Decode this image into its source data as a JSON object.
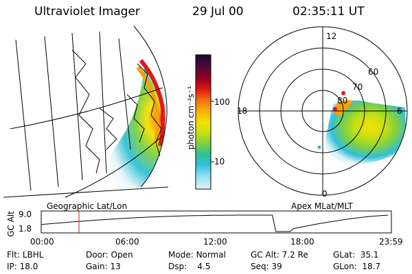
{
  "header": {
    "title": "Ultraviolet Imager",
    "date": "29 Jul 00",
    "time": "02:35:11 UT"
  },
  "colorbar": {
    "label": "photon cm⁻²s⁻¹",
    "ticks": [
      "100",
      "10"
    ],
    "colors": [
      "#1a0a2a",
      "#4a0a3a",
      "#9a0020",
      "#e01818",
      "#f06a10",
      "#f5a20a",
      "#f6e000",
      "#c8e010",
      "#80d040",
      "#30c090",
      "#30c0d8",
      "#90e0f0",
      "#e0f4f8"
    ]
  },
  "geo_map": {
    "label": "Geographic Lat/Lon"
  },
  "polar_plot": {
    "label": "Apex MLat/MLT",
    "mlt_labels": {
      "top": "12",
      "left": "18",
      "right": "6",
      "bottom": "0"
    },
    "lat_labels": [
      "60",
      "70",
      "80"
    ]
  },
  "timeline": {
    "ylabel": "GC Alt",
    "yticks": [
      "9.0",
      "1.8"
    ],
    "xticks": [
      "00:00",
      "06:00",
      "12:00",
      "18:00",
      "23:59"
    ],
    "current_time_fraction": 0.108
  },
  "info": {
    "row1": [
      {
        "k": "Flt:",
        "v": "LBHL"
      },
      {
        "k": "Door:",
        "v": "Open"
      },
      {
        "k": "Mode:",
        "v": "Normal"
      },
      {
        "k": "GC Alt:",
        "v": "7.2 Re"
      },
      {
        "k": "GLat:",
        "v": "35.1"
      }
    ],
    "row2": [
      {
        "k": "IP:",
        "v": "18.0"
      },
      {
        "k": "Gain:",
        "v": "13"
      },
      {
        "k": "Dsp:",
        "v": "4.5"
      },
      {
        "k": "Seq:",
        "v": "39"
      },
      {
        "k": "GLon:",
        "v": "18.7"
      }
    ]
  }
}
